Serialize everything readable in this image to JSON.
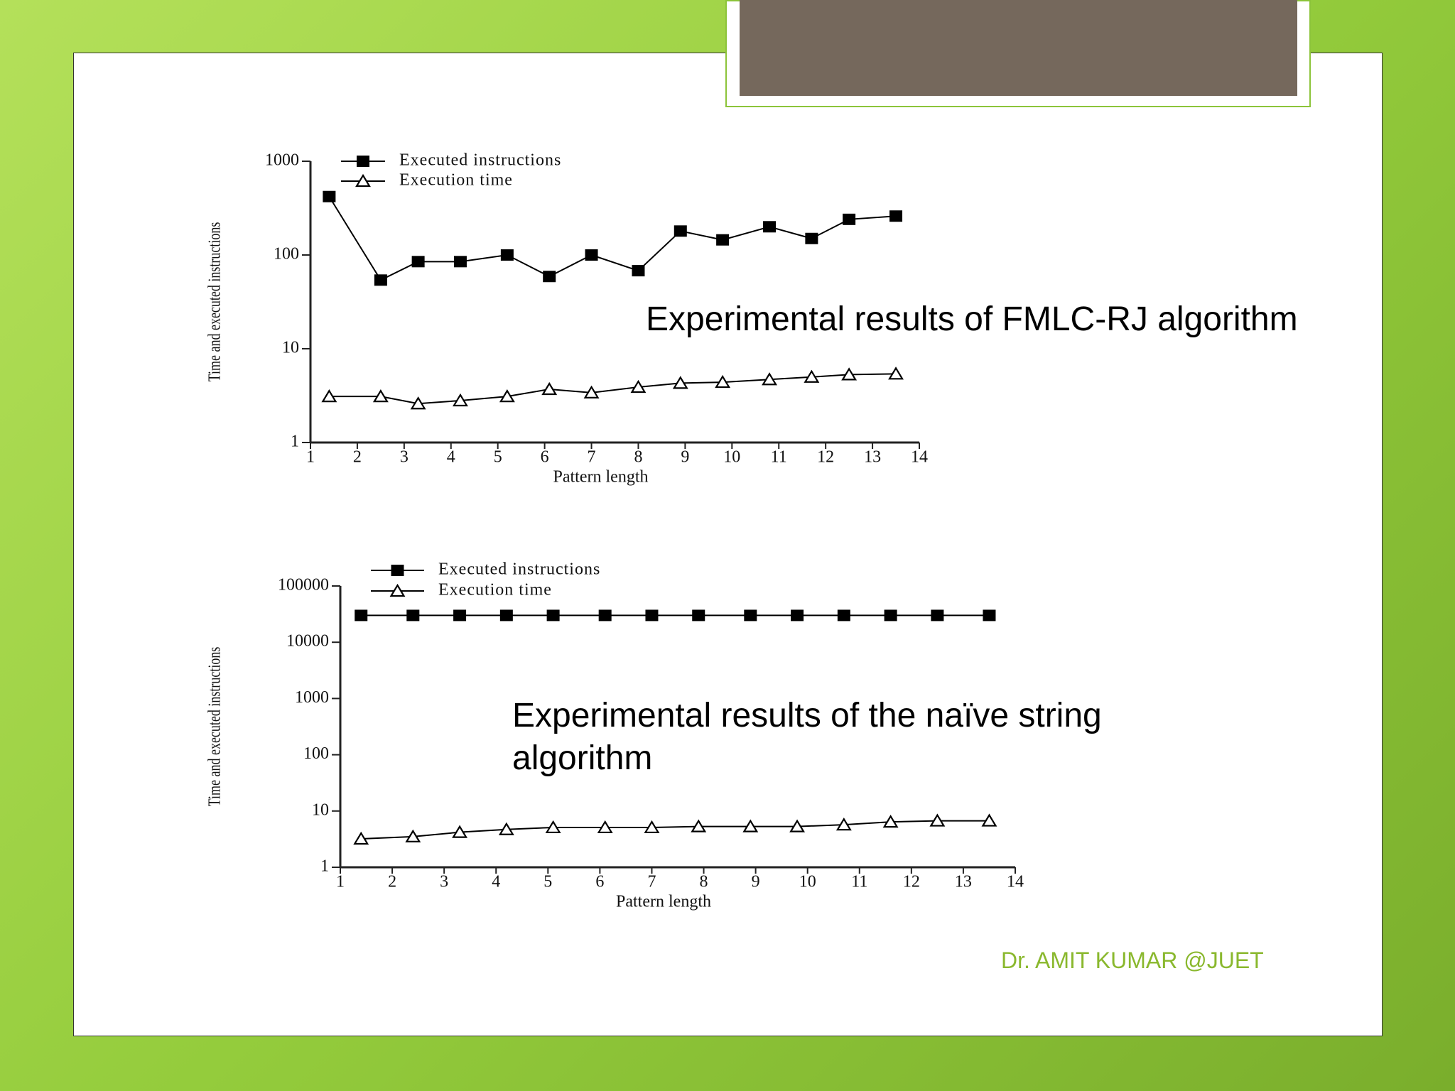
{
  "chart_data": [
    {
      "type": "line",
      "ylabel": "Time and executed instructions",
      "xlabel": "Pattern length",
      "log_y": true,
      "xlim": [
        1,
        14
      ],
      "xticks": [
        1,
        2,
        3,
        4,
        5,
        6,
        7,
        8,
        9,
        10,
        11,
        12,
        13,
        14
      ],
      "ylim": [
        1,
        1000
      ],
      "yticks": [
        1,
        10,
        100,
        1000
      ],
      "x": [
        1.4,
        2.5,
        3.3,
        4.2,
        5.2,
        6.1,
        7.0,
        8.0,
        8.9,
        9.8,
        10.8,
        11.7,
        12.5,
        13.5
      ],
      "series": [
        {
          "name": "Executed instructions",
          "color": "#000000",
          "marker": "square",
          "values": [
            420,
            54,
            85,
            85,
            100,
            59,
            100,
            68,
            180,
            145,
            200,
            150,
            240,
            260
          ]
        },
        {
          "name": "Execution time",
          "color": "#000000",
          "marker": "triangle",
          "values": [
            3.1,
            3.1,
            2.6,
            2.8,
            3.1,
            3.7,
            3.4,
            3.9,
            4.3,
            4.4,
            4.7,
            5.0,
            5.3,
            5.4
          ]
        }
      ]
    },
    {
      "type": "line",
      "ylabel": "Time and executed instructions",
      "xlabel": "Pattern length",
      "log_y": true,
      "xlim": [
        1,
        14
      ],
      "xticks": [
        1,
        2,
        3,
        4,
        5,
        6,
        7,
        8,
        9,
        10,
        11,
        12,
        13,
        14
      ],
      "ylim": [
        1,
        100000
      ],
      "yticks": [
        1,
        10,
        100,
        1000,
        10000,
        100000
      ],
      "x": [
        1.4,
        2.4,
        3.3,
        4.2,
        5.1,
        6.1,
        7.0,
        7.9,
        8.9,
        9.8,
        10.7,
        11.6,
        12.5,
        13.5
      ],
      "series": [
        {
          "name": "Executed instructions",
          "color": "#000000",
          "marker": "square",
          "values": [
            30000,
            30000,
            30000,
            30000,
            30000,
            30000,
            30000,
            30000,
            30000,
            30000,
            30000,
            30000,
            30000,
            30000
          ]
        },
        {
          "name": "Execution time",
          "color": "#000000",
          "marker": "triangle",
          "values": [
            3.2,
            3.5,
            4.2,
            4.7,
            5.1,
            5.1,
            5.1,
            5.3,
            5.3,
            5.3,
            5.7,
            6.4,
            6.7,
            6.7
          ]
        }
      ]
    }
  ],
  "captions": [
    "Experimental results of FMLC-RJ algorithm",
    "Experimental results of the naïve string algorithm"
  ],
  "footer": "Dr. AMIT KUMAR @JUET"
}
